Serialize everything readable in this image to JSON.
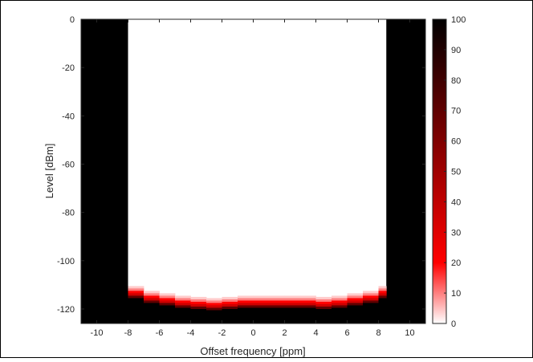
{
  "chart_data": {
    "type": "heatmap",
    "xlabel": "Offset frequency [ppm]",
    "ylabel": "Level [dBm]",
    "xlim": [
      -11,
      11
    ],
    "ylim": [
      -126,
      0
    ],
    "x_ticks": [
      -10,
      -8,
      -6,
      -4,
      -2,
      0,
      2,
      4,
      6,
      8,
      10
    ],
    "y_ticks": [
      0,
      -20,
      -40,
      -60,
      -80,
      -100,
      -120
    ],
    "colorbar": {
      "range": [
        0,
        100
      ],
      "ticks": [
        0,
        10,
        20,
        30,
        40,
        50,
        60,
        70,
        80,
        90,
        100
      ],
      "colormap": [
        "#ffffff",
        "#ff0000",
        "#000000"
      ],
      "colormap_stops": [
        0,
        20,
        100
      ]
    },
    "saturated_regions": [
      {
        "x": [
          -11,
          -8
        ],
        "level": 100
      },
      {
        "x": [
          8.5,
          11
        ],
        "level": 100
      }
    ],
    "noise_floor_columns": [
      {
        "x": [
          -8,
          -7
        ],
        "floor": -112
      },
      {
        "x": [
          -7,
          -6
        ],
        "floor": -114
      },
      {
        "x": [
          -6,
          -5
        ],
        "floor": -115
      },
      {
        "x": [
          -5,
          -4
        ],
        "floor": -116
      },
      {
        "x": [
          -4,
          -3
        ],
        "floor": -116.5
      },
      {
        "x": [
          -3,
          -2
        ],
        "floor": -117
      },
      {
        "x": [
          -2,
          -1
        ],
        "floor": -116.5
      },
      {
        "x": [
          -1,
          0
        ],
        "floor": -116
      },
      {
        "x": [
          0,
          1
        ],
        "floor": -116
      },
      {
        "x": [
          1,
          2
        ],
        "floor": -116
      },
      {
        "x": [
          2,
          3
        ],
        "floor": -116
      },
      {
        "x": [
          3,
          4
        ],
        "floor": -116
      },
      {
        "x": [
          4,
          5
        ],
        "floor": -116.5
      },
      {
        "x": [
          5,
          6
        ],
        "floor": -116
      },
      {
        "x": [
          6,
          7
        ],
        "floor": -115
      },
      {
        "x": [
          7,
          8
        ],
        "floor": -114
      },
      {
        "x": [
          8,
          8.5
        ],
        "floor": -112
      }
    ]
  }
}
